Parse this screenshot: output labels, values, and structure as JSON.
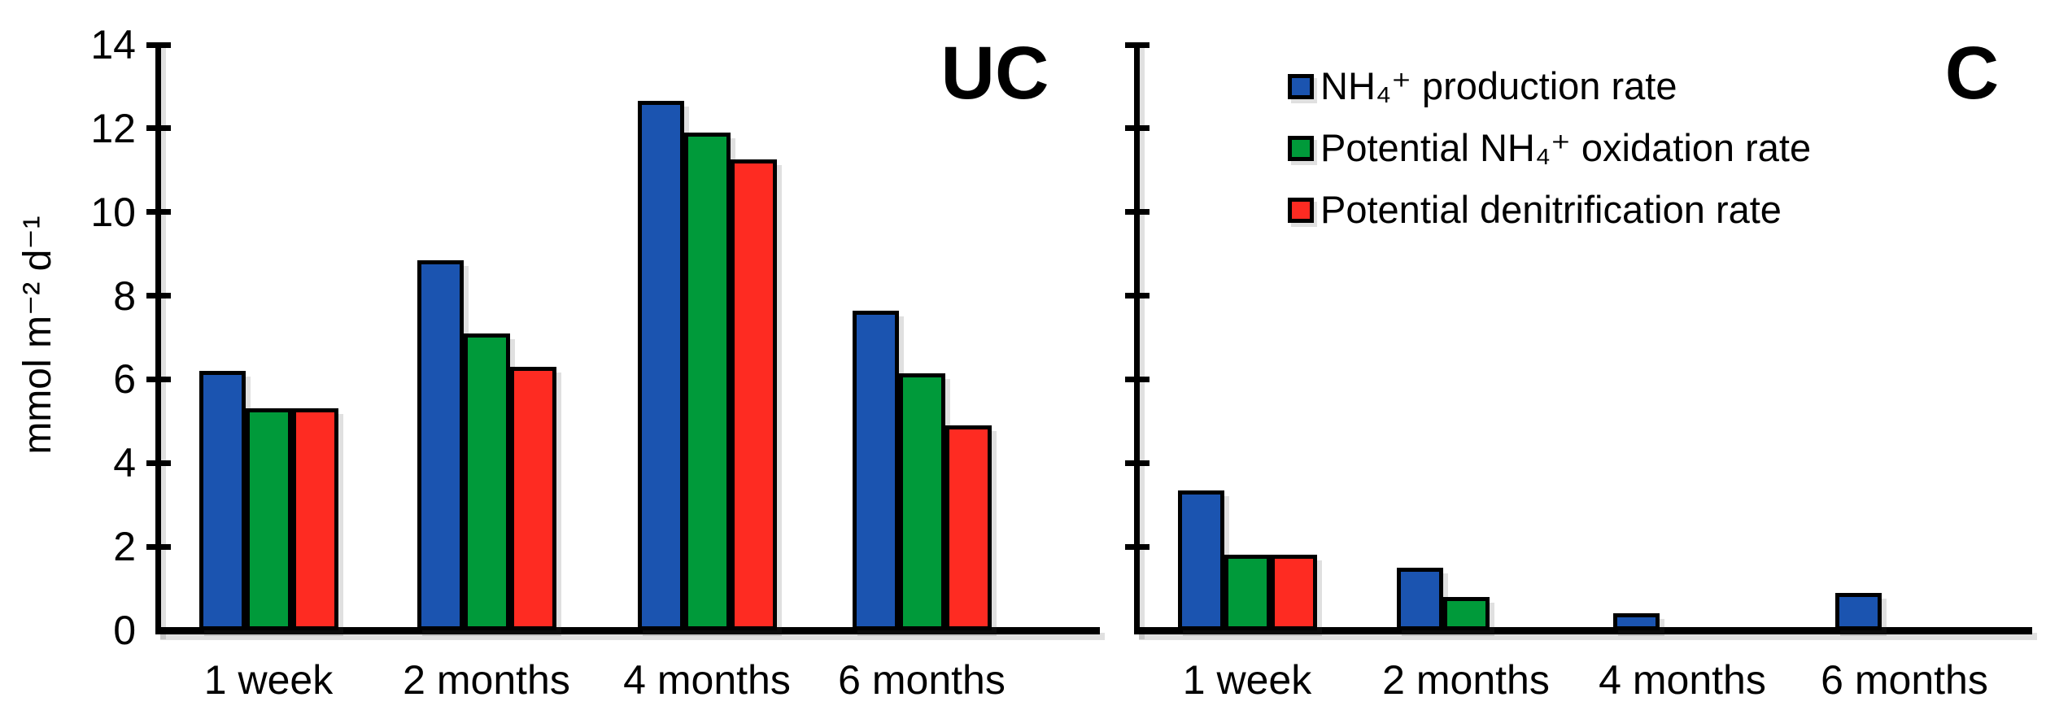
{
  "figure": {
    "y_axis_label": "mmol m⁻² d⁻¹",
    "legend": [
      {
        "label": "NH₄⁺ production rate",
        "color": "#1B54B0"
      },
      {
        "label": "Potential NH₄⁺ oxidation rate",
        "color": "#009A3A"
      },
      {
        "label": "Potential denitrification rate",
        "color": "#FE2B22"
      }
    ]
  },
  "chart_data": [
    {
      "type": "bar",
      "panel_title": "UC",
      "categories": [
        "1 week",
        "2 months",
        "4 months",
        "6 months"
      ],
      "series": [
        {
          "name": "NH₄⁺ production rate",
          "color": "#1B54B0",
          "values": [
            6.2,
            8.85,
            12.65,
            7.65
          ]
        },
        {
          "name": "Potential NH₄⁺ oxidation rate",
          "color": "#009A3A",
          "values": [
            5.3,
            7.1,
            11.9,
            6.15
          ]
        },
        {
          "name": "Potential denitrification rate",
          "color": "#FE2B22",
          "values": [
            5.3,
            6.3,
            11.25,
            4.9
          ]
        }
      ],
      "ylabel": "mmol m⁻² d⁻¹",
      "ylim": [
        0,
        14
      ],
      "yticks": [
        0,
        2,
        4,
        6,
        8,
        10,
        12,
        14
      ],
      "y_tick_labels_shown": true,
      "grid": false,
      "legend_position": "none"
    },
    {
      "type": "bar",
      "panel_title": "C",
      "categories": [
        "1 week",
        "2 months",
        "4 months",
        "6 months"
      ],
      "series": [
        {
          "name": "NH₄⁺ production rate",
          "color": "#1B54B0",
          "values": [
            3.35,
            1.5,
            0.4,
            0.9
          ]
        },
        {
          "name": "Potential NH₄⁺ oxidation rate",
          "color": "#009A3A",
          "values": [
            1.8,
            0.8,
            null,
            null
          ]
        },
        {
          "name": "Potential denitrification rate",
          "color": "#FE2B22",
          "values": [
            1.8,
            null,
            null,
            null
          ]
        }
      ],
      "ylabel": "",
      "ylim": [
        0,
        14
      ],
      "yticks": [
        0,
        2,
        4,
        6,
        8,
        10,
        12,
        14
      ],
      "y_tick_labels_shown": false,
      "grid": false,
      "legend_position": "inside-top-left"
    }
  ]
}
